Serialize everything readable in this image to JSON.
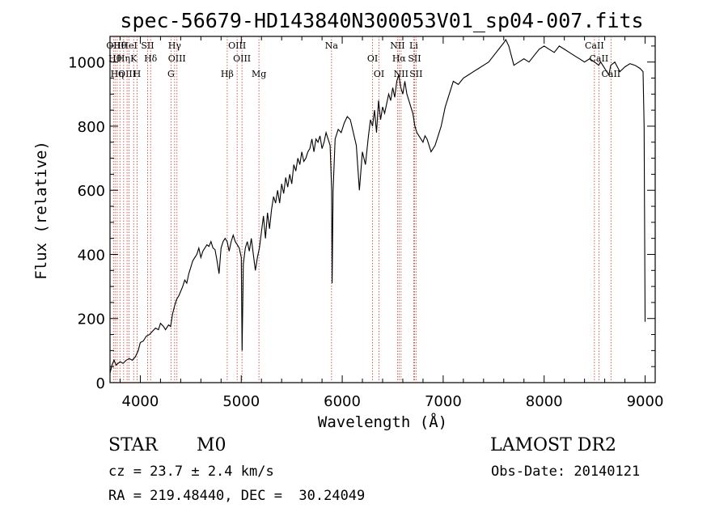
{
  "chart_data": {
    "type": "line",
    "title": "spec-56679-HD143840N300053V01_sp04-007.fits",
    "xlabel": "Wavelength (Å)",
    "ylabel": "Flux (relative)",
    "xlim": [
      3700,
      9100
    ],
    "ylim": [
      0,
      1080
    ],
    "xticks": [
      4000,
      5000,
      6000,
      7000,
      8000,
      9000
    ],
    "yticks": [
      0,
      200,
      400,
      600,
      800,
      1000
    ],
    "grid": false,
    "series": [
      {
        "x": [
          3700,
          3720,
          3740,
          3760,
          3780,
          3800,
          3830,
          3860,
          3890,
          3920,
          3950,
          3980,
          4000,
          4030,
          4060,
          4090,
          4120,
          4150,
          4180,
          4200,
          4230,
          4250,
          4280,
          4300,
          4320,
          4340,
          4360,
          4380,
          4400,
          4420,
          4440,
          4460,
          4480,
          4500,
          4520,
          4540,
          4560,
          4580,
          4600,
          4620,
          4640,
          4660,
          4680,
          4700,
          4720,
          4740,
          4760,
          4780,
          4800,
          4820,
          4840,
          4860,
          4880,
          4900,
          4920,
          4940,
          4960,
          4980,
          5000,
          5008,
          5020,
          5040,
          5060,
          5080,
          5100,
          5120,
          5140,
          5160,
          5180,
          5200,
          5220,
          5240,
          5260,
          5280,
          5300,
          5320,
          5340,
          5360,
          5380,
          5400,
          5420,
          5440,
          5460,
          5480,
          5500,
          5520,
          5540,
          5560,
          5580,
          5600,
          5620,
          5640,
          5660,
          5680,
          5700,
          5720,
          5740,
          5760,
          5780,
          5800,
          5820,
          5840,
          5860,
          5880,
          5895,
          5900,
          5910,
          5930,
          5960,
          5990,
          6020,
          6050,
          6080,
          6110,
          6140,
          6170,
          6200,
          6230,
          6260,
          6280,
          6300,
          6320,
          6340,
          6360,
          6380,
          6400,
          6420,
          6440,
          6460,
          6480,
          6500,
          6520,
          6540,
          6560,
          6580,
          6600,
          6620,
          6640,
          6660,
          6680,
          6700,
          6720,
          6740,
          6760,
          6780,
          6800,
          6820,
          6840,
          6860,
          6880,
          6900,
          6920,
          6940,
          6960,
          6980,
          7000,
          7020,
          7040,
          7060,
          7080,
          7100,
          7150,
          7200,
          7250,
          7300,
          7350,
          7400,
          7450,
          7500,
          7550,
          7600,
          7620,
          7650,
          7700,
          7750,
          7800,
          7850,
          7900,
          7950,
          8000,
          8050,
          8100,
          8150,
          8200,
          8250,
          8300,
          8350,
          8400,
          8450,
          8500,
          8540,
          8560,
          8600,
          8640,
          8660,
          8700,
          8750,
          8800,
          8850,
          8900,
          8950,
          8980,
          8990,
          9000
        ],
        "y": [
          30,
          55,
          70,
          55,
          60,
          65,
          60,
          70,
          75,
          70,
          80,
          100,
          125,
          130,
          145,
          150,
          160,
          170,
          165,
          185,
          175,
          165,
          180,
          175,
          215,
          240,
          260,
          270,
          285,
          300,
          320,
          310,
          340,
          360,
          380,
          390,
          400,
          420,
          390,
          410,
          420,
          430,
          425,
          440,
          420,
          415,
          380,
          340,
          420,
          440,
          450,
          440,
          410,
          440,
          460,
          440,
          430,
          420,
          390,
          100,
          370,
          420,
          440,
          410,
          450,
          400,
          350,
          390,
          420,
          470,
          520,
          450,
          530,
          480,
          540,
          580,
          560,
          600,
          560,
          620,
          590,
          640,
          610,
          650,
          620,
          680,
          660,
          700,
          680,
          720,
          690,
          700,
          720,
          730,
          760,
          720,
          760,
          750,
          770,
          730,
          750,
          780,
          760,
          740,
          600,
          310,
          600,
          760,
          790,
          780,
          810,
          830,
          820,
          780,
          740,
          600,
          720,
          680,
          770,
          820,
          800,
          850,
          780,
          880,
          820,
          860,
          840,
          870,
          900,
          880,
          920,
          890,
          940,
          960,
          920,
          900,
          940,
          900,
          880,
          860,
          840,
          800,
          780,
          770,
          760,
          750,
          770,
          760,
          740,
          720,
          730,
          740,
          760,
          780,
          800,
          830,
          860,
          880,
          900,
          920,
          940,
          930,
          950,
          960,
          970,
          980,
          990,
          1000,
          1020,
          1040,
          1060,
          1070,
          1050,
          990,
          1000,
          1010,
          1000,
          1020,
          1040,
          1050,
          1040,
          1030,
          1050,
          1040,
          1030,
          1020,
          1010,
          1000,
          1010,
          1000,
          990,
          1000,
          980,
          960,
          990,
          1000,
          970,
          985,
          995,
          990,
          980,
          970,
          800,
          190
        ]
      }
    ],
    "lines": [
      {
        "x": 3734,
        "label": "OII"
      },
      {
        "x": 3750,
        "label": "Hθ"
      },
      {
        "x": 3771,
        "label": "Hη"
      },
      {
        "x": 3798,
        "label": "Hθ"
      },
      {
        "x": 3835,
        "label": "Hη"
      },
      {
        "x": 3869,
        "label": "OIII"
      },
      {
        "x": 3889,
        "label": "HeI"
      },
      {
        "x": 3934,
        "label": "K"
      },
      {
        "x": 3968,
        "label": "H"
      },
      {
        "x": 4072,
        "label": "SII"
      },
      {
        "x": 4102,
        "label": "Hδ"
      },
      {
        "x": 4304,
        "label": "G"
      },
      {
        "x": 4340,
        "label": "Hγ"
      },
      {
        "x": 4363,
        "label": "OIII"
      },
      {
        "x": 4861,
        "label": "Hβ"
      },
      {
        "x": 4959,
        "label": "OIII"
      },
      {
        "x": 5007,
        "label": "OIII"
      },
      {
        "x": 5175,
        "label": "Mg"
      },
      {
        "x": 5894,
        "label": "Na"
      },
      {
        "x": 6300,
        "label": "OI"
      },
      {
        "x": 6364,
        "label": "OI"
      },
      {
        "x": 6548,
        "label": "NII"
      },
      {
        "x": 6563,
        "label": "Hα"
      },
      {
        "x": 6583,
        "label": "NII"
      },
      {
        "x": 6708,
        "label": "Li"
      },
      {
        "x": 6716,
        "label": "SII"
      },
      {
        "x": 6731,
        "label": "SII"
      },
      {
        "x": 8498,
        "label": "CaII"
      },
      {
        "x": 8542,
        "label": "CaII"
      },
      {
        "x": 8662,
        "label": "CaII"
      }
    ]
  },
  "info": {
    "object_class": "STAR",
    "subclass": "M0",
    "survey": "LAMOST DR2",
    "cz": "cz = 23.7 ± 2.4 km/s",
    "obs_date": "Obs-Date: 20140121",
    "coords": "RA = 219.48440, DEC =  30.24049"
  }
}
